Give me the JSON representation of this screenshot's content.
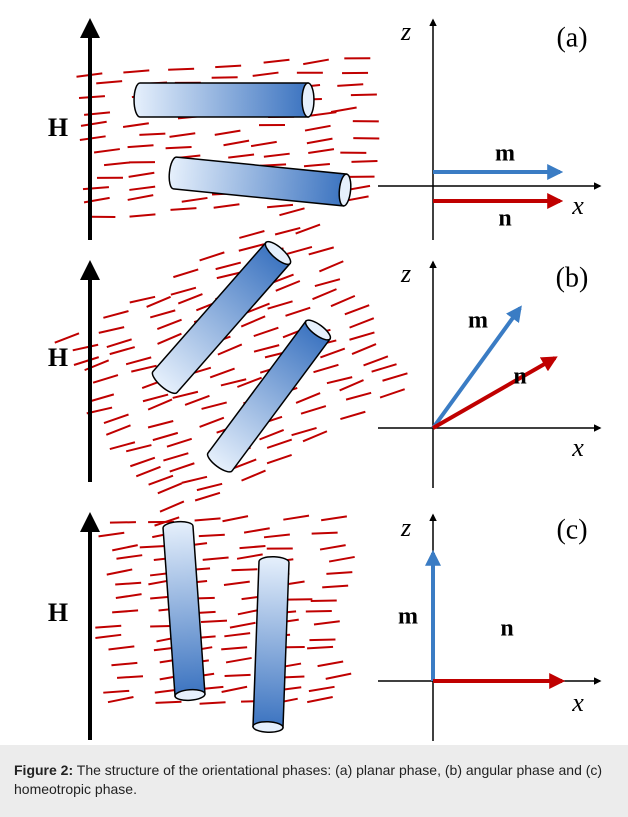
{
  "panels": [
    {
      "label": "(a)",
      "field": "H",
      "z_axis": "z",
      "x_axis": "x",
      "vectors": [
        "m",
        "n"
      ]
    },
    {
      "label": "(b)",
      "field": "H",
      "z_axis": "z",
      "x_axis": "x",
      "vectors": [
        "m",
        "n"
      ]
    },
    {
      "label": "(c)",
      "field": "H",
      "z_axis": "z",
      "x_axis": "x",
      "vectors": [
        "m",
        "n"
      ]
    }
  ],
  "caption": {
    "prefix": "Figure 2:",
    "text": "The structure of the orientational phases: (a) planar phase, (b) angular phase and (c) homeotropic phase."
  }
}
